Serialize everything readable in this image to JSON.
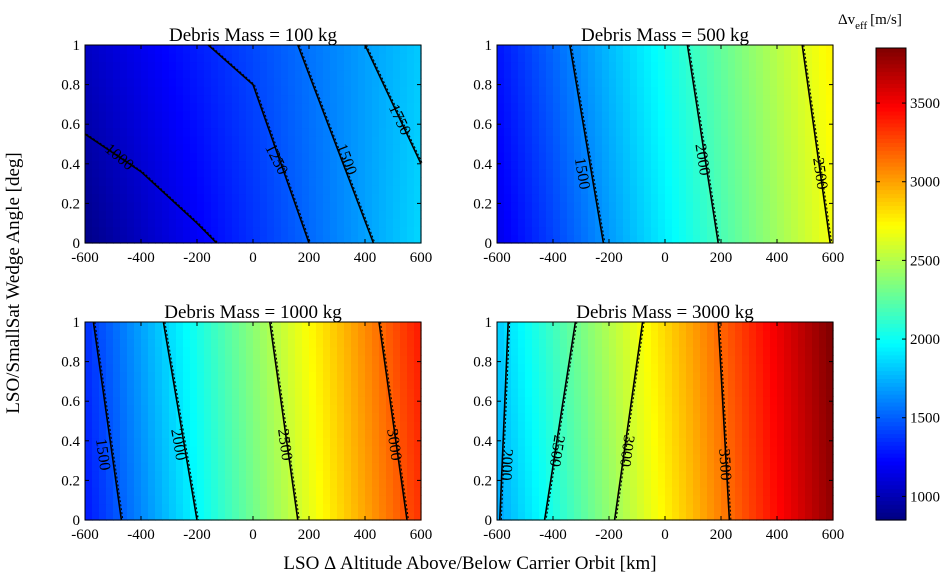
{
  "chart_data": {
    "type": "heatmap",
    "shared_xlabel": "LSO Δ Altitude Above/Below Carrier Orbit [km]",
    "shared_ylabel": "LSO/SmallSat Wedge Angle [deg]",
    "xlim": [
      -600,
      600
    ],
    "ylim": [
      0,
      1
    ],
    "x_ticks": [
      "-600",
      "-400",
      "-200",
      "0",
      "200",
      "400",
      "600"
    ],
    "y_ticks": [
      "0",
      "0.2",
      "0.4",
      "0.6",
      "0.8",
      "1"
    ],
    "colormap": "jet",
    "colorbar": {
      "label_main": "Δv",
      "label_sub": "eff",
      "label_unit": "[m/s]",
      "range": [
        850,
        3850
      ],
      "ticks": [
        "1000",
        "1500",
        "2000",
        "2500",
        "3000",
        "3500"
      ]
    },
    "panels": [
      {
        "title": "Debris Mass = 100 kg",
        "z_corners": {
          "x_min_y_0": 870,
          "x_max_y_0": 1860,
          "x_min_y_1": 1050,
          "x_max_y_1": 1820
        },
        "contours": [
          {
            "label": "1000",
            "points": [
              [
                -600,
                0.55
              ],
              [
                -400,
                0.36
              ],
              [
                -200,
                0.1
              ],
              [
                -130,
                0
              ]
            ]
          },
          {
            "label": "1250",
            "points": [
              [
                -160,
                1.0
              ],
              [
                0,
                0.8
              ],
              [
                200,
                0
              ]
            ]
          },
          {
            "label": "1500",
            "points": [
              [
                160,
                1.0
              ],
              [
                430,
                0
              ]
            ]
          },
          {
            "label": "1750",
            "points": [
              [
                400,
                1.0
              ],
              [
                600,
                0.4
              ]
            ]
          }
        ],
        "contour_labels": [
          {
            "text": "1000",
            "x": -480,
            "y": 0.43
          },
          {
            "text": "1250",
            "x": 80,
            "y": 0.42
          },
          {
            "text": "1500",
            "x": 330,
            "y": 0.42
          },
          {
            "text": "1750",
            "x": 520,
            "y": 0.62
          }
        ]
      },
      {
        "title": "Debris Mass = 500 kg",
        "z_corners": {
          "x_min_y_0": 1160,
          "x_max_y_0": 2700,
          "x_min_y_1": 1280,
          "x_max_y_1": 2760
        },
        "contours": [
          {
            "label": "1500",
            "points": [
              [
                -340,
                1.0
              ],
              [
                -220,
                0
              ]
            ]
          },
          {
            "label": "2000",
            "points": [
              [
                80,
                1.0
              ],
              [
                190,
                0
              ]
            ]
          },
          {
            "label": "2500",
            "points": [
              [
                490,
                1.0
              ],
              [
                590,
                0
              ]
            ]
          }
        ],
        "contour_labels": [
          {
            "text": "1500",
            "x": -300,
            "y": 0.35
          },
          {
            "text": "2000",
            "x": 130,
            "y": 0.42
          },
          {
            "text": "2500",
            "x": 550,
            "y": 0.35
          }
        ]
      },
      {
        "title": "Debris Mass = 1000 kg",
        "z_corners": {
          "x_min_y_0": 1280,
          "x_max_y_0": 3330,
          "x_min_y_1": 1360,
          "x_max_y_1": 3410
        },
        "contours": [
          {
            "label": "1500",
            "points": [
              [
                -570,
                1.0
              ],
              [
                -470,
                0
              ]
            ]
          },
          {
            "label": "2000",
            "points": [
              [
                -320,
                1.0
              ],
              [
                -200,
                0
              ]
            ]
          },
          {
            "label": "2500",
            "points": [
              [
                60,
                1.0
              ],
              [
                160,
                0
              ]
            ]
          },
          {
            "label": "3000",
            "points": [
              [
                450,
                1.0
              ],
              [
                550,
                0
              ]
            ]
          }
        ],
        "contour_labels": [
          {
            "text": "1500",
            "x": -540,
            "y": 0.33
          },
          {
            "text": "2000",
            "x": -270,
            "y": 0.38
          },
          {
            "text": "2500",
            "x": 110,
            "y": 0.38
          },
          {
            "text": "3000",
            "x": 500,
            "y": 0.38
          }
        ]
      },
      {
        "title": "Debris Mass = 3000 kg",
        "z_corners": {
          "x_min_y_0": 1700,
          "x_max_y_0": 3800,
          "x_min_y_1": 1820,
          "x_max_y_1": 3860
        },
        "contours": [
          {
            "label": "2000",
            "points": [
              [
                -560,
                1.0
              ],
              [
                -590,
                0
              ]
            ]
          },
          {
            "label": "2500",
            "points": [
              [
                -320,
                1.0
              ],
              [
                -430,
                0
              ]
            ]
          },
          {
            "label": "3000",
            "points": [
              [
                -80,
                1.0
              ],
              [
                -180,
                0
              ]
            ]
          },
          {
            "label": "3500",
            "points": [
              [
                190,
                1.0
              ],
              [
                230,
                0
              ]
            ]
          }
        ],
        "contour_labels": [
          {
            "text": "2000",
            "x": -570,
            "y": 0.28
          },
          {
            "text": "2500",
            "x": -390,
            "y": 0.35
          },
          {
            "text": "3000",
            "x": -140,
            "y": 0.35
          },
          {
            "text": "3500",
            "x": 210,
            "y": 0.28
          }
        ]
      }
    ]
  }
}
